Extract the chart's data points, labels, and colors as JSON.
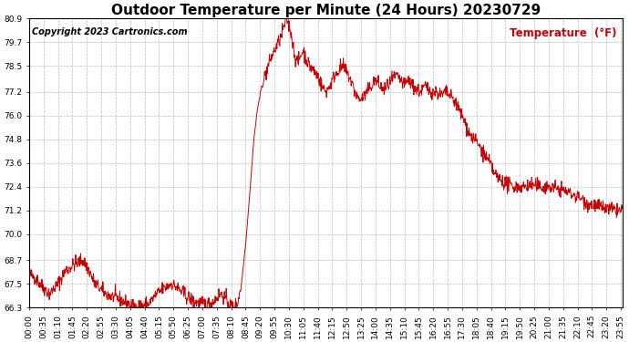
{
  "title": "Outdoor Temperature per Minute (24 Hours) 20230729",
  "copyright_text": "Copyright 2023 Cartronics.com",
  "legend_label": "Temperature  (°F)",
  "line_color": "#cc0000",
  "background_color": "#ffffff",
  "grid_color": "#aaaaaa",
  "ylim": [
    66.3,
    80.9
  ],
  "yticks": [
    66.3,
    67.5,
    68.7,
    70.0,
    71.2,
    72.4,
    73.6,
    74.8,
    76.0,
    77.2,
    78.5,
    79.7,
    80.9
  ],
  "title_fontsize": 11,
  "axis_fontsize": 6.5,
  "copyright_fontsize": 7,
  "legend_fontsize": 8.5,
  "num_minutes": 1440,
  "xtick_step": 35,
  "figwidth": 6.9,
  "figheight": 3.75,
  "dpi": 100
}
